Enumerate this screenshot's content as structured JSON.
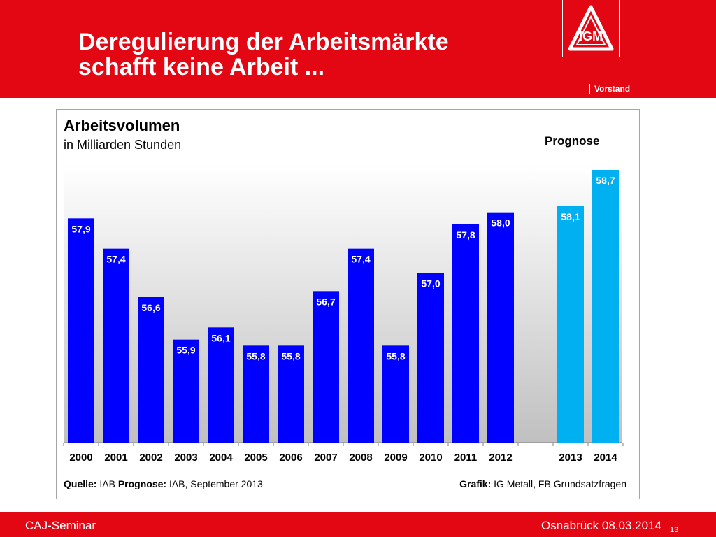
{
  "header": {
    "title_line1": "Deregulierung der Arbeitsmärkte",
    "title_line2": "schafft keine Arbeit ...",
    "brand_label": "Vorstand",
    "logo_text": "IGM"
  },
  "chart_panel": {
    "prognose_label": "Prognose",
    "source_label": "Quelle:",
    "source_value": "IAB",
    "prognose_source_label": "Prognose:",
    "prognose_source_value": "IAB, September 2013",
    "credit_label": "Grafik:",
    "credit_value": "IG Metall, FB Grundsatzfragen"
  },
  "chart_data": {
    "type": "bar",
    "title": "Arbeitsvolumen",
    "subtitle": "in Milliarden Stunden",
    "categories": [
      "2000",
      "2001",
      "2002",
      "2003",
      "2004",
      "2005",
      "2006",
      "2007",
      "2008",
      "2009",
      "2010",
      "2011",
      "2012",
      "2013",
      "2014"
    ],
    "values": [
      57.9,
      57.4,
      56.6,
      55.9,
      56.1,
      55.8,
      55.8,
      56.7,
      57.4,
      55.8,
      57.0,
      57.8,
      58.0,
      58.1,
      58.7
    ],
    "value_labels": [
      "57,9",
      "57,4",
      "56,6",
      "55,9",
      "56,1",
      "55,8",
      "55,8",
      "56,7",
      "57,4",
      "55,8",
      "57,0",
      "57,8",
      "58,0",
      "58,1",
      "58,7"
    ],
    "forecast_categories": [
      "2013",
      "2014"
    ],
    "ylim": [
      54.2,
      59.0
    ],
    "grid": false,
    "colors": {
      "actual": "#0000ff",
      "forecast": "#00b0f0"
    }
  },
  "footer": {
    "left": "CAJ-Seminar",
    "right": "Osnabrück 08.03.2014",
    "page": "13"
  },
  "theme": {
    "brand_red": "#e30613"
  }
}
